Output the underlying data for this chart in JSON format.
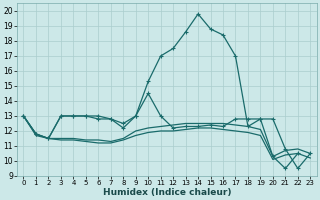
{
  "xlabel": "Humidex (Indice chaleur)",
  "xlim": [
    -0.5,
    23.5
  ],
  "ylim": [
    9,
    20.5
  ],
  "yticks": [
    9,
    10,
    11,
    12,
    13,
    14,
    15,
    16,
    17,
    18,
    19,
    20
  ],
  "xticks": [
    0,
    1,
    2,
    3,
    4,
    5,
    6,
    7,
    8,
    9,
    10,
    11,
    12,
    13,
    14,
    15,
    16,
    17,
    18,
    19,
    20,
    21,
    22,
    23
  ],
  "bg_color": "#cce8e8",
  "line_color": "#1a6b6b",
  "grid_color": "#aacece",
  "series": [
    {
      "x": [
        0,
        1,
        2,
        3,
        4,
        5,
        6,
        7,
        8,
        9,
        10,
        11,
        12,
        13,
        14,
        15,
        16,
        17,
        18,
        19,
        20,
        21,
        22,
        23
      ],
      "y": [
        13,
        11.8,
        11.5,
        13,
        13,
        13,
        13,
        12.8,
        12.2,
        13,
        15.3,
        17,
        17.5,
        18.6,
        19.8,
        18.8,
        18.4,
        17.0,
        12.3,
        12.8,
        10.3,
        9.5,
        10.5,
        null
      ],
      "has_markers": true
    },
    {
      "x": [
        0,
        1,
        2,
        3,
        4,
        5,
        6,
        7,
        8,
        9,
        10,
        11,
        12,
        13,
        14,
        15,
        16,
        17,
        18,
        19,
        20,
        21,
        22,
        23
      ],
      "y": [
        13,
        11.8,
        11.5,
        11.5,
        11.5,
        11.4,
        11.4,
        11.3,
        11.5,
        12.0,
        12.2,
        12.3,
        12.4,
        12.5,
        12.5,
        12.5,
        12.5,
        12.4,
        12.3,
        12.1,
        10.3,
        10.7,
        10.8,
        10.5
      ],
      "has_markers": false
    },
    {
      "x": [
        0,
        1,
        2,
        3,
        4,
        5,
        6,
        7,
        8,
        9,
        10,
        11,
        12,
        13,
        14,
        15,
        16,
        17,
        18,
        19,
        20,
        21,
        22,
        23
      ],
      "y": [
        13,
        11.7,
        11.5,
        11.4,
        11.4,
        11.3,
        11.2,
        11.2,
        11.4,
        11.7,
        11.9,
        12.0,
        12.0,
        12.1,
        12.2,
        12.2,
        12.1,
        12.0,
        11.9,
        11.7,
        10.1,
        10.4,
        10.5,
        10.2
      ],
      "has_markers": false
    },
    {
      "x": [
        0,
        1,
        2,
        3,
        4,
        5,
        6,
        7,
        8,
        9,
        10,
        11,
        12,
        13,
        14,
        15,
        16,
        17,
        18,
        19,
        20,
        21,
        22,
        23
      ],
      "y": [
        13,
        11.8,
        11.5,
        13,
        13,
        13,
        12.8,
        12.8,
        12.5,
        13,
        14.5,
        13.0,
        12.2,
        12.3,
        12.3,
        12.4,
        12.3,
        12.8,
        12.8,
        12.8,
        12.8,
        10.8,
        9.5,
        10.5
      ],
      "has_markers": true
    }
  ]
}
